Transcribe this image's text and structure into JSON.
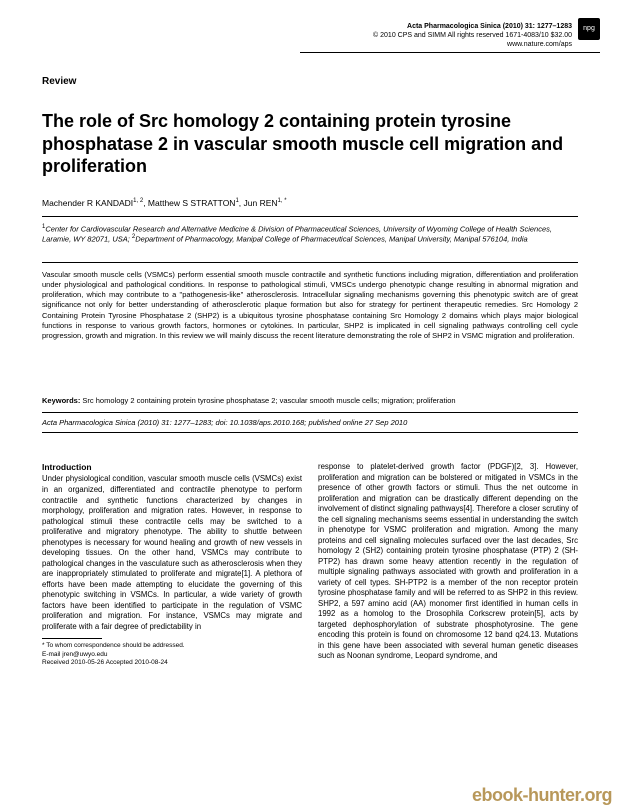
{
  "journal": {
    "name": "Acta Pharmacologica Sinica",
    "citation_line1": "Acta Pharmacologica Sinica  (2010) 31: 1277–1283",
    "copyright": "© 2010 CPS and SIMM    All rights reserved 1671-4083/10  $32.00",
    "url": "www.nature.com/aps",
    "badge": "npg"
  },
  "article": {
    "type": "Review",
    "title": "The role of Src homology 2 containing protein tyrosine phosphatase 2 in vascular smooth muscle cell migration and proliferation",
    "authors_html": "Machender R KANDADI",
    "author1_sup": "1, 2",
    "author2": ", Matthew S STRATTON",
    "author2_sup": "1",
    "author3": ", Jun REN",
    "author3_sup": "1, *",
    "affiliations": {
      "sup1": "1",
      "aff1": "Center for Cardiovascular Research and Alternative Medicine & Division of Pharmaceutical Sciences, University of Wyoming College of Health Sciences, Laramie, WY 82071, USA; ",
      "sup2": "2",
      "aff2": "Department of Pharmacology, Manipal College of Pharmaceutical Sciences, Manipal University, Manipal 576104, India"
    },
    "abstract": "Vascular smooth muscle cells (VSMCs) perform essential smooth muscle contractile and synthetic functions including migration, differentiation and proliferation under physiological and pathological conditions.  In response to pathological stimuli, VMSCs undergo phenotypic change resulting in abnormal migration and proliferation, which may contribute to a \"pathogenesis-like\" atherosclerosis. Intracellular signaling mechanisms governing this phenotypic switch are of great significance not only for better understanding of atherosclerotic plaque formation but also for strategy for pertinent therapeutic remedies.  Src Homology 2 Containing Protein Tyrosine Phosphatase 2 (SHP2) is a ubiquitous tyrosine phosphatase containing Src Homology 2 domains which plays major biological functions in response to various growth factors, hormones or cytokines.  In particular, SHP2 is implicated in cell signaling pathways controlling cell cycle progression, growth and migration.  In this review we will mainly discuss the recent literature demonstrating the role of SHP2 in VSMC migration and proliferation.",
    "keywords_label": "Keywords:",
    "keywords": " Src homology 2 containing protein tyrosine phosphatase 2; vascular smooth muscle cells; migration; proliferation",
    "citation": "Acta Pharmacologica Sinica (2010) 31: 1277–1283; doi: 10.1038/aps.2010.168; published online 27 Sep 2010"
  },
  "body": {
    "intro_heading": "Introduction",
    "col1": "Under physiological condition, vascular smooth muscle cells (VSMCs) exist in an organized, differentiated and contractile phenotype to perform contractile and synthetic functions characterized by changes in morphology, proliferation and migration rates.  However, in response to pathological stimuli these contractile cells may be switched to a proliferative and migratory phenotype.  The ability to shuttle between phenotypes is necessary for wound healing and growth of new vessels in developing tissues.  On the other hand, VSMCs may contribute to pathological changes in the vasculature such as atherosclerosis when they are inappropriately stimulated to proliferate and migrate[1].  A plethora of efforts have been made attempting to elucidate the governing of this phenotypic switching in VSMCs.  In particular, a wide variety of growth factors have been identified to participate in the regulation of VSMC proliferation and migration.  For instance, VSMCs may migrate and proliferate with a fair degree of predictability in",
    "col2": "response to platelet-derived growth factor (PDGF)[2, 3].  However, proliferation and migration can be bolstered or mitigated in VSMCs in the presence of other growth factors or stimuli. Thus the net outcome in proliferation and migration can be drastically different depending on the involvement of distinct signaling pathways[4].  Therefore a closer scrutiny of the cell signaling mechanisms seems essential in understanding the switch in phenotype for VSMC proliferation and migration. Among the many proteins and cell signaling molecules surfaced over the last decades, Src homology 2 (SH2) containing protein tyrosine phosphatase (PTP) 2 (SH-PTP2) has drawn some heavy attention recently in the regulation of multiple signaling pathways associated with growth and proliferation in a variety of cell types.  SH-PTP2 is a member of the non receptor protein tyrosine phosphatase family and will be referred to as SHP2 in this review.  SHP2, a 597 amino acid (AA) monomer first identified in human cells in 1992 as a homolog to the Drosophila Corkscrew protein[5], acts by targeted dephosphorylation of substrate phosphotyrosine.  The gene encoding this protein is found on chromosome 12 band q24.13.  Mutations in this gene have been associated with several human genetic diseases such as Noonan syndrome, Leopard syndrome, and"
  },
  "footnote": {
    "corr": "* To whom correspondence should be addressed.",
    "email": "E-mail jren@uwyo.edu",
    "dates": "Received 2010-05-26    Accepted 2010-08-24"
  },
  "watermark": "ebook-hunter.org",
  "colors": {
    "text": "#000000",
    "background": "#ffffff",
    "watermark": "#b8985a"
  }
}
